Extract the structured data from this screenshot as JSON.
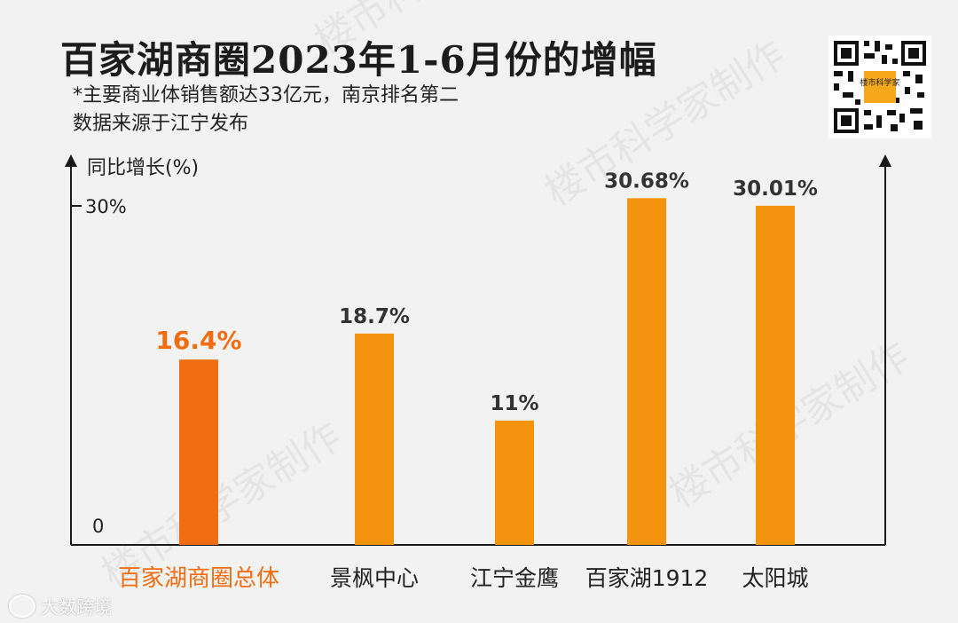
{
  "title": "百家湖商圈2023年1-6月份的增幅",
  "subtitle_lines": [
    "*主要商业体销售额达33亿元，南京排名第二",
    "数据来源于江宁发布"
  ],
  "watermark_text": "楼市科学家制作",
  "qr_label": "楼市科学家",
  "footer_logo": "大数跨境",
  "colors": {
    "primary_bar": "#f26d12",
    "bar": "#f3930e",
    "axis": "#1a1a1a",
    "label_dark": "#333333"
  },
  "chart_data": {
    "type": "bar",
    "ylabel": "同比增长(%)",
    "ylim": [
      0,
      30
    ],
    "yticks": [
      {
        "value": 0,
        "label": "0"
      },
      {
        "value": 30,
        "label": "30%"
      }
    ],
    "categories": [
      "百家湖商圈总体",
      "景枫中心",
      "江宁金鹰",
      "百家湖1912",
      "太阳城"
    ],
    "values": [
      16.4,
      18.7,
      11,
      30.68,
      30.01
    ],
    "data_labels": [
      "16.4%",
      "18.7%",
      "11%",
      "30.68%",
      "30.01%"
    ],
    "highlight_index": 0,
    "grid": false,
    "legend": "none"
  }
}
